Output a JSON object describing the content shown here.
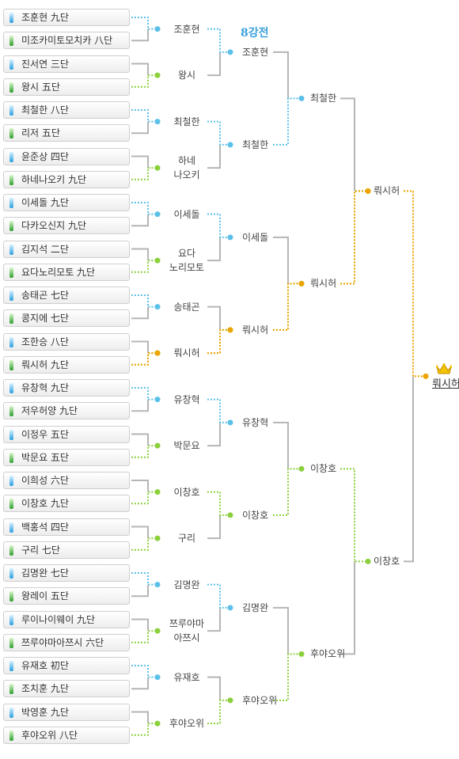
{
  "round_label": "8강전",
  "players": [
    {
      "name": "조훈현 九단",
      "color": "blue"
    },
    {
      "name": "미조카미토모치카 八단",
      "color": "green"
    },
    {
      "name": "진서연 三단",
      "color": "blue"
    },
    {
      "name": "왕시 五단",
      "color": "green"
    },
    {
      "name": "최철한 八단",
      "color": "blue"
    },
    {
      "name": "리저 五단",
      "color": "green"
    },
    {
      "name": "윤준상 四단",
      "color": "blue"
    },
    {
      "name": "하네나오키 九단",
      "color": "green"
    },
    {
      "name": "이세돌 九단",
      "color": "blue"
    },
    {
      "name": "다카오신지 九단",
      "color": "green"
    },
    {
      "name": "김지석 二단",
      "color": "blue"
    },
    {
      "name": "요다노리모토 九단",
      "color": "green"
    },
    {
      "name": "송태곤 七단",
      "color": "blue"
    },
    {
      "name": "콩지에 七단",
      "color": "green"
    },
    {
      "name": "조한승 八단",
      "color": "blue"
    },
    {
      "name": "뤄시허 九단",
      "color": "green"
    },
    {
      "name": "유창혁 九단",
      "color": "blue"
    },
    {
      "name": "저우허양 九단",
      "color": "green"
    },
    {
      "name": "이정우 五단",
      "color": "blue"
    },
    {
      "name": "박문요 五단",
      "color": "green"
    },
    {
      "name": "이희성 六단",
      "color": "blue"
    },
    {
      "name": "이창호 九단",
      "color": "green"
    },
    {
      "name": "백홍석 四단",
      "color": "blue"
    },
    {
      "name": "구리 七단",
      "color": "green"
    },
    {
      "name": "김명완 七단",
      "color": "blue"
    },
    {
      "name": "왕레이 五단",
      "color": "green"
    },
    {
      "name": "루이나이웨이 九단",
      "color": "blue"
    },
    {
      "name": "쯔루야마아쯔시 六단",
      "color": "green"
    },
    {
      "name": "유재호 初단",
      "color": "blue"
    },
    {
      "name": "조치훈 九단",
      "color": "green"
    },
    {
      "name": "박영훈 九단",
      "color": "blue"
    },
    {
      "name": "후야오위 八단",
      "color": "green"
    }
  ],
  "round1_winners": [
    {
      "lines": [
        "조훈현"
      ],
      "from": 0
    },
    {
      "lines": [
        "왕시"
      ],
      "from": 1
    },
    {
      "lines": [
        "최철한"
      ],
      "from": 0
    },
    {
      "lines": [
        "하네",
        "나오키"
      ],
      "from": 1
    },
    {
      "lines": [
        "이세돌"
      ],
      "from": 0
    },
    {
      "lines": [
        "요다",
        "노리모토"
      ],
      "from": 1
    },
    {
      "lines": [
        "송태곤"
      ],
      "from": 0
    },
    {
      "lines": [
        "뤄시허"
      ],
      "from": 1
    },
    {
      "lines": [
        "유창혁"
      ],
      "from": 0
    },
    {
      "lines": [
        "박문요"
      ],
      "from": 1
    },
    {
      "lines": [
        "이창호"
      ],
      "from": 1
    },
    {
      "lines": [
        "구리"
      ],
      "from": 1
    },
    {
      "lines": [
        "김명완"
      ],
      "from": 0
    },
    {
      "lines": [
        "쯔루야마",
        "아쯔시"
      ],
      "from": 1
    },
    {
      "lines": [
        "유재호"
      ],
      "from": 0
    },
    {
      "lines": [
        "후야오위"
      ],
      "from": 1
    }
  ],
  "round2_winners": [
    {
      "name": "조훈현",
      "from": 0
    },
    {
      "name": "최철한",
      "from": 0
    },
    {
      "name": "이세돌",
      "from": 0
    },
    {
      "name": "뤄시허",
      "from": 1
    },
    {
      "name": "유창혁",
      "from": 0
    },
    {
      "name": "이창호",
      "from": 0
    },
    {
      "name": "김명완",
      "from": 0
    },
    {
      "name": "후야오위",
      "from": 1
    }
  ],
  "round3_winners": [
    {
      "name": "최철한",
      "from": 1
    },
    {
      "name": "뤄시허",
      "from": 1
    },
    {
      "name": "이창호",
      "from": 1
    },
    {
      "name": "후야오위",
      "from": 1
    }
  ],
  "round4_winners": [
    {
      "name": "뤄시허",
      "from": 1
    },
    {
      "name": "이창호",
      "from": 0
    }
  ],
  "champion": {
    "name": "뤄시허",
    "from": 0
  },
  "colors": {
    "blue": "#5bc0e8",
    "green": "#8ccf3c",
    "orange": "#eca400",
    "gray": "#b5b5b5"
  }
}
